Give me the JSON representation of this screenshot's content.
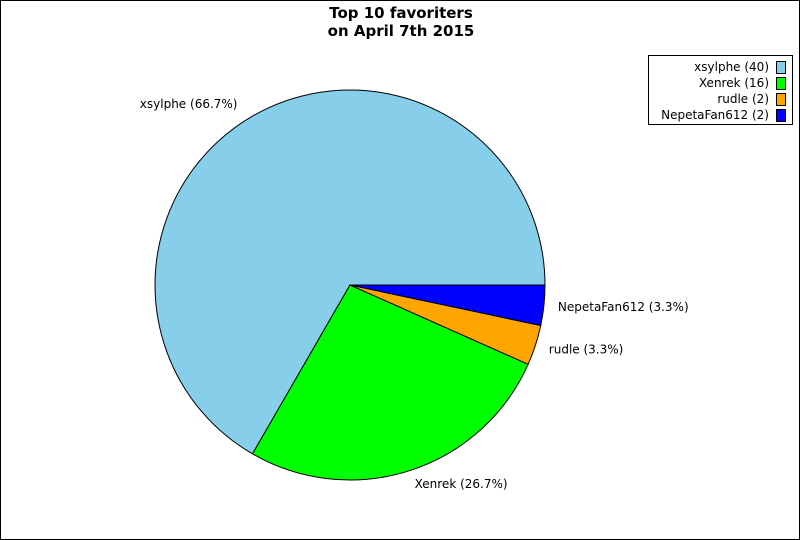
{
  "chart_data": {
    "type": "pie",
    "title_lines": [
      "Top 10 favoriters",
      "on April 7th 2015"
    ],
    "slices": [
      {
        "name": "xsylphe",
        "value": 40,
        "label": "xsylphe (66.7%)",
        "legend": "xsylphe (40)",
        "color": "#87ceeb"
      },
      {
        "name": "Xenrek",
        "value": 16,
        "label": "Xenrek (26.7%)",
        "legend": "Xenrek (16)",
        "color": "#00ff00"
      },
      {
        "name": "rudle",
        "value": 2,
        "label": "rudle (3.3%)",
        "legend": "rudle (2)",
        "color": "#ffa500"
      },
      {
        "name": "NepetaFan612",
        "value": 2,
        "label": "NepetaFan612 (3.3%)",
        "legend": "NepetaFan612 (2)",
        "color": "#0000ff"
      }
    ],
    "legend_position": "top-right"
  }
}
